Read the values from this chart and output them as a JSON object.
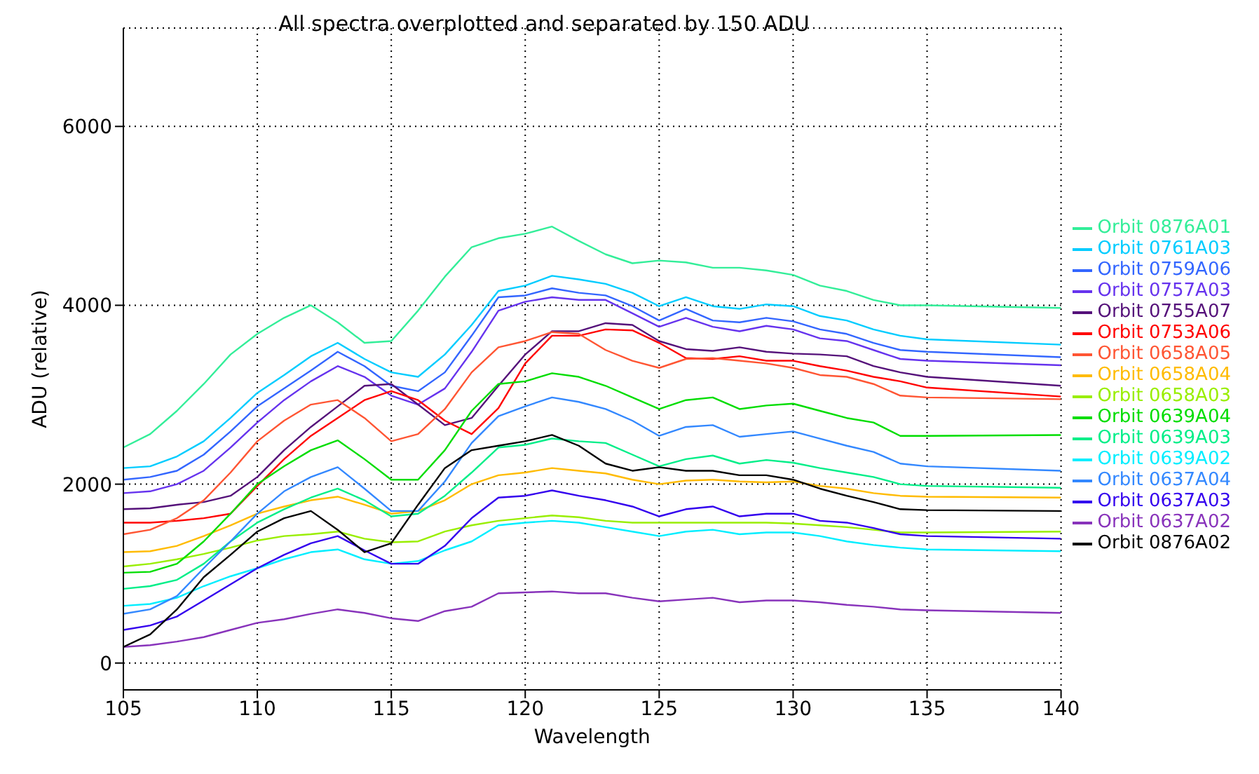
{
  "chart_data": {
    "type": "line",
    "title": "All spectra overplotted and separated by 150 ADU",
    "xlabel": "Wavelength",
    "ylabel": "ADU (relative)",
    "x": [
      105,
      106,
      107,
      108,
      109,
      110,
      111,
      112,
      113,
      114,
      115,
      116,
      117,
      118,
      119,
      120,
      121,
      122,
      123,
      124,
      125,
      126,
      127,
      128,
      129,
      130,
      131,
      132,
      133,
      134,
      135,
      140
    ],
    "xlim": [
      105,
      140
    ],
    "xticks": [
      105,
      110,
      115,
      120,
      125,
      130,
      135,
      140
    ],
    "ylim": [
      -300,
      7100
    ],
    "yticks": [
      0,
      2000,
      4000,
      6000
    ],
    "grid": true,
    "legend": "right",
    "marker": "none",
    "line_style": "solid",
    "series": [
      {
        "name": "Orbit 0876A01",
        "color": "#33ee99",
        "values": [
          2410,
          2560,
          2820,
          3120,
          3450,
          3680,
          3860,
          4000,
          3810,
          3580,
          3600,
          3940,
          4320,
          4650,
          4750,
          4800,
          4880,
          4720,
          4570,
          4470,
          4500,
          4480,
          4420,
          4420,
          4390,
          4340,
          4220,
          4160,
          4060,
          4000,
          4000,
          3970
        ]
      },
      {
        "name": "Orbit 0761A03",
        "color": "#00ccff",
        "values": [
          2180,
          2200,
          2310,
          2480,
          2740,
          3020,
          3220,
          3430,
          3580,
          3400,
          3250,
          3200,
          3450,
          3780,
          4160,
          4220,
          4330,
          4290,
          4240,
          4140,
          3990,
          4090,
          3990,
          3960,
          4010,
          3990,
          3880,
          3830,
          3730,
          3660,
          3620,
          3560
        ]
      },
      {
        "name": "Orbit 0759A06",
        "color": "#3366ff",
        "values": [
          2050,
          2080,
          2150,
          2330,
          2590,
          2870,
          3070,
          3270,
          3480,
          3320,
          3100,
          3040,
          3250,
          3660,
          4090,
          4110,
          4190,
          4140,
          4110,
          3990,
          3830,
          3960,
          3830,
          3810,
          3860,
          3820,
          3730,
          3680,
          3580,
          3500,
          3480,
          3420
        ]
      },
      {
        "name": "Orbit 0757A03",
        "color": "#6633ee",
        "values": [
          1900,
          1920,
          2000,
          2150,
          2410,
          2690,
          2940,
          3150,
          3320,
          3200,
          2990,
          2890,
          3070,
          3480,
          3940,
          4040,
          4090,
          4060,
          4060,
          3910,
          3760,
          3860,
          3760,
          3710,
          3770,
          3730,
          3630,
          3600,
          3500,
          3400,
          3380,
          3330
        ]
      },
      {
        "name": "Orbit 0755A07",
        "color": "#55117a",
        "values": [
          1720,
          1730,
          1770,
          1800,
          1870,
          2080,
          2380,
          2640,
          2870,
          3100,
          3120,
          2890,
          2660,
          2740,
          3100,
          3450,
          3710,
          3710,
          3800,
          3780,
          3600,
          3510,
          3490,
          3530,
          3480,
          3460,
          3450,
          3430,
          3320,
          3250,
          3200,
          3100
        ]
      },
      {
        "name": "Orbit 0753A06",
        "color": "#ff0000",
        "values": [
          1570,
          1570,
          1590,
          1620,
          1670,
          1980,
          2280,
          2540,
          2740,
          2940,
          3040,
          2940,
          2710,
          2560,
          2850,
          3350,
          3660,
          3660,
          3730,
          3720,
          3580,
          3410,
          3400,
          3430,
          3380,
          3380,
          3320,
          3270,
          3200,
          3150,
          3080,
          2980
        ]
      },
      {
        "name": "Orbit 0658A05",
        "color": "#ff5533",
        "values": [
          1440,
          1490,
          1620,
          1820,
          2130,
          2480,
          2710,
          2890,
          2940,
          2740,
          2480,
          2560,
          2840,
          3250,
          3530,
          3600,
          3700,
          3680,
          3500,
          3380,
          3300,
          3400,
          3410,
          3380,
          3350,
          3300,
          3220,
          3200,
          3120,
          2990,
          2970,
          2950
        ]
      },
      {
        "name": "Orbit 0658A04",
        "color": "#ffbb00",
        "values": [
          1240,
          1250,
          1310,
          1420,
          1540,
          1670,
          1750,
          1820,
          1860,
          1770,
          1670,
          1700,
          1820,
          2000,
          2100,
          2130,
          2180,
          2150,
          2120,
          2050,
          2000,
          2040,
          2050,
          2030,
          2020,
          2030,
          1980,
          1950,
          1900,
          1870,
          1860,
          1850
        ]
      },
      {
        "name": "Orbit 0658A03",
        "color": "#99ee00",
        "values": [
          1080,
          1110,
          1160,
          1220,
          1290,
          1370,
          1420,
          1440,
          1470,
          1390,
          1350,
          1360,
          1470,
          1540,
          1590,
          1620,
          1650,
          1630,
          1590,
          1570,
          1570,
          1570,
          1570,
          1570,
          1570,
          1560,
          1540,
          1520,
          1490,
          1460,
          1460,
          1470
        ]
      },
      {
        "name": "Orbit 0639A04",
        "color": "#00dd00",
        "values": [
          1010,
          1020,
          1110,
          1360,
          1670,
          2000,
          2200,
          2380,
          2490,
          2280,
          2050,
          2050,
          2380,
          2820,
          3120,
          3150,
          3240,
          3200,
          3100,
          2970,
          2840,
          2940,
          2970,
          2840,
          2880,
          2900,
          2820,
          2740,
          2690,
          2540,
          2540,
          2550
        ]
      },
      {
        "name": "Orbit 0639A03",
        "color": "#00ee88",
        "values": [
          830,
          860,
          930,
          1110,
          1360,
          1570,
          1720,
          1850,
          1950,
          1820,
          1640,
          1670,
          1870,
          2130,
          2410,
          2440,
          2510,
          2480,
          2460,
          2330,
          2200,
          2280,
          2320,
          2230,
          2270,
          2240,
          2180,
          2130,
          2080,
          2000,
          1980,
          1960
        ]
      },
      {
        "name": "Orbit 0639A02",
        "color": "#00eeff",
        "values": [
          640,
          660,
          730,
          860,
          970,
          1060,
          1160,
          1240,
          1270,
          1160,
          1110,
          1140,
          1260,
          1360,
          1540,
          1570,
          1590,
          1570,
          1520,
          1470,
          1420,
          1470,
          1490,
          1440,
          1460,
          1460,
          1420,
          1360,
          1320,
          1290,
          1270,
          1250
        ]
      },
      {
        "name": "Orbit 0637A04",
        "color": "#3388ff",
        "values": [
          550,
          600,
          750,
          1060,
          1360,
          1670,
          1920,
          2080,
          2190,
          1950,
          1700,
          1700,
          2030,
          2460,
          2760,
          2870,
          2970,
          2920,
          2840,
          2710,
          2540,
          2640,
          2660,
          2530,
          2560,
          2590,
          2510,
          2430,
          2360,
          2230,
          2200,
          2150
        ]
      },
      {
        "name": "Orbit 0637A03",
        "color": "#3300ee",
        "values": [
          370,
          420,
          520,
          700,
          880,
          1060,
          1210,
          1340,
          1420,
          1260,
          1110,
          1110,
          1310,
          1620,
          1850,
          1870,
          1930,
          1870,
          1820,
          1750,
          1640,
          1720,
          1750,
          1640,
          1670,
          1670,
          1590,
          1570,
          1510,
          1440,
          1420,
          1390
        ]
      },
      {
        "name": "Orbit 0637A02",
        "color": "#8833bb",
        "values": [
          180,
          200,
          240,
          290,
          370,
          450,
          490,
          550,
          600,
          560,
          500,
          470,
          580,
          630,
          780,
          790,
          800,
          780,
          780,
          730,
          690,
          710,
          730,
          680,
          700,
          700,
          680,
          650,
          630,
          600,
          590,
          560
        ]
      },
      {
        "name": "Orbit 0876A02",
        "color": "#000000",
        "values": [
          180,
          320,
          600,
          960,
          1210,
          1470,
          1620,
          1700,
          1490,
          1240,
          1340,
          1770,
          2180,
          2380,
          2430,
          2480,
          2550,
          2430,
          2230,
          2150,
          2190,
          2150,
          2150,
          2100,
          2100,
          2050,
          1950,
          1870,
          1800,
          1720,
          1710,
          1700
        ]
      }
    ]
  }
}
